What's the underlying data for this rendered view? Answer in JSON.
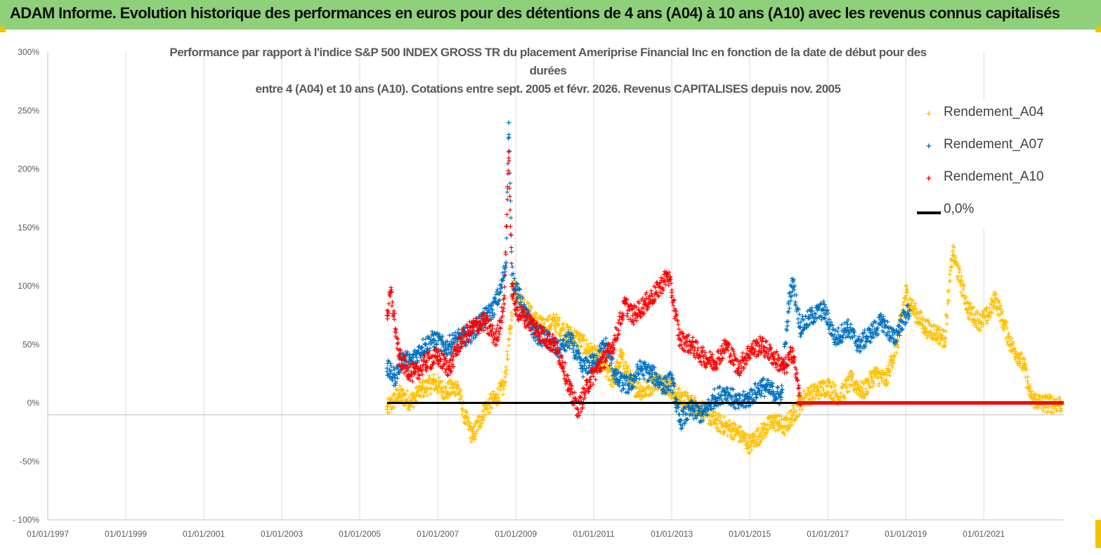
{
  "banner": {
    "title": "ADAM Informe. Evolution historique des performances en euros pour des détentions de 4 ans (A04) à 10 ans (A10) avec les revenus connus capitalisés"
  },
  "colors": {
    "banner_bg": "#8fd07a",
    "a04": "#ffc000",
    "a07": "#0070c0",
    "a10": "#ff0000",
    "zero": "#000000"
  },
  "chart_data": {
    "type": "scatter",
    "title_lines": [
      "Performance par rapport à l'indice S&P 500 INDEX GROSS TR  du placement Ameriprise Financial Inc en fonction de la date de début pour des",
      "durées",
      "entre 4 (A04) et 10 ans (A10). Cotations entre sept. 2005 et févr. 2026. Revenus CAPITALISES depuis nov. 2005"
    ],
    "y_ticks": [
      "300%",
      "250%",
      "200%",
      "150%",
      "100%",
      "50%",
      "0%",
      "-50%",
      "- 100%"
    ],
    "x_ticks": [
      "01/01/1997",
      "01/01/1999",
      "01/01/2001",
      "01/01/2003",
      "01/01/2005",
      "01/01/2007",
      "01/01/2009",
      "01/01/2011",
      "01/01/2013",
      "01/01/2015",
      "01/01/2017",
      "01/01/2019",
      "01/01/2021"
    ],
    "xlim": [
      1997.0,
      2023.05
    ],
    "ylim": [
      -100,
      300
    ],
    "series": [
      {
        "name": "Rendement_A04",
        "color": "#ffc000",
        "x": [
          2005.7,
          2006.0,
          2006.3,
          2006.6,
          2006.9,
          2007.2,
          2007.5,
          2007.7,
          2007.9,
          2008.2,
          2008.5,
          2008.7,
          2008.85,
          2008.95,
          2009.1,
          2009.4,
          2009.7,
          2010.0,
          2010.3,
          2010.6,
          2010.9,
          2011.2,
          2011.5,
          2011.7,
          2012.0,
          2012.3,
          2012.6,
          2012.9,
          2013.2,
          2013.5,
          2013.8,
          2014.1,
          2014.4,
          2014.7,
          2015.0,
          2015.3,
          2015.6,
          2015.9,
          2016.1,
          2016.4,
          2016.7,
          2017.0,
          2017.3,
          2017.6,
          2017.9,
          2018.2,
          2018.5,
          2018.8,
          2019.0,
          2019.2,
          2019.5,
          2019.8,
          2020.0,
          2020.2,
          2020.4,
          2020.6,
          2020.9,
          2021.1,
          2021.3,
          2021.5,
          2021.7,
          2021.9,
          2022.05,
          2022.2,
          2022.5,
          2022.8,
          2023.0
        ],
        "y": [
          -5,
          8,
          2,
          12,
          18,
          10,
          15,
          -12,
          -28,
          -5,
          5,
          15,
          60,
          105,
          90,
          75,
          65,
          70,
          60,
          55,
          45,
          35,
          20,
          40,
          15,
          10,
          20,
          15,
          5,
          0,
          -5,
          -15,
          -20,
          -25,
          -35,
          -25,
          -15,
          -20,
          -10,
          5,
          10,
          15,
          5,
          20,
          10,
          25,
          20,
          55,
          95,
          80,
          65,
          60,
          55,
          130,
          105,
          80,
          70,
          75,
          90,
          70,
          50,
          40,
          30,
          5,
          0,
          0,
          0
        ]
      },
      {
        "name": "Rendement_A07",
        "color": "#0070c0",
        "x": [
          2005.7,
          2005.9,
          2006.1,
          2006.3,
          2006.6,
          2006.9,
          2007.2,
          2007.5,
          2007.8,
          2008.1,
          2008.4,
          2008.6,
          2008.75,
          2008.82,
          2008.9,
          2009.0,
          2009.2,
          2009.5,
          2009.8,
          2010.1,
          2010.4,
          2010.7,
          2011.0,
          2011.3,
          2011.6,
          2011.9,
          2012.2,
          2012.5,
          2012.8,
          2013.0,
          2013.2,
          2013.5,
          2013.8,
          2014.1,
          2014.4,
          2014.7,
          2015.0,
          2015.3,
          2015.6,
          2015.8,
          2016.0,
          2016.1,
          2016.3,
          2016.6,
          2016.9,
          2017.2,
          2017.5,
          2017.8,
          2018.1,
          2018.4,
          2018.7,
          2018.9,
          2019.1
        ],
        "y": [
          30,
          22,
          40,
          35,
          48,
          55,
          48,
          55,
          58,
          70,
          80,
          95,
          120,
          240,
          110,
          100,
          80,
          60,
          55,
          45,
          55,
          30,
          35,
          50,
          20,
          15,
          30,
          25,
          15,
          20,
          -15,
          -5,
          -10,
          5,
          10,
          0,
          5,
          15,
          10,
          5,
          85,
          105,
          65,
          75,
          80,
          55,
          65,
          50,
          60,
          70,
          55,
          70,
          80
        ]
      },
      {
        "name": "Rendement_A10",
        "color": "#ff0000",
        "x": [
          2005.7,
          2005.8,
          2006.0,
          2006.2,
          2006.4,
          2006.7,
          2007.0,
          2007.3,
          2007.6,
          2007.9,
          2008.2,
          2008.5,
          2008.7,
          2008.82,
          2008.9,
          2009.0,
          2009.2,
          2009.5,
          2009.8,
          2010.0,
          2010.2,
          2010.4,
          2010.6,
          2010.9,
          2011.2,
          2011.5,
          2011.8,
          2012.0,
          2012.3,
          2012.6,
          2012.9,
          2013.0,
          2013.2,
          2013.5,
          2013.8,
          2014.1,
          2014.4,
          2014.7,
          2015.0,
          2015.3,
          2015.6,
          2015.9,
          2016.1,
          2016.3
        ],
        "y": [
          75,
          95,
          40,
          30,
          25,
          35,
          40,
          30,
          55,
          65,
          70,
          55,
          85,
          215,
          100,
          80,
          75,
          65,
          55,
          50,
          35,
          10,
          -5,
          20,
          35,
          50,
          85,
          75,
          85,
          95,
          110,
          95,
          55,
          50,
          40,
          35,
          50,
          30,
          45,
          50,
          40,
          30,
          45,
          0
        ]
      },
      {
        "name": "0,0%",
        "color": "#000000",
        "x": [
          2005.7,
          2023.05
        ],
        "y": [
          0,
          0
        ]
      }
    ],
    "legend": [
      "Rendement_A04",
      "Rendement_A07",
      "Rendement_A10",
      "0,0%"
    ],
    "legend_position": "top-right",
    "zero_red_span": [
      2016.2,
      2023.05
    ]
  }
}
